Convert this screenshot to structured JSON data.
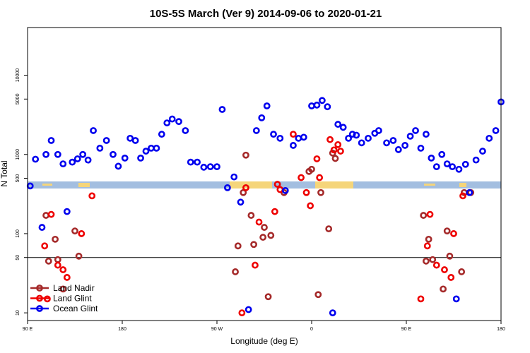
{
  "chart_data": {
    "type": "scatter",
    "title": "10S-5S March (Ver 9)   2014-09-06 to 2020-01-21",
    "xlabel": "Longitude (deg E)",
    "ylabel": "N Total",
    "y_scale": "log",
    "xlim": [
      90,
      450
    ],
    "ylim": [
      8,
      40000
    ],
    "x_ticks": [
      {
        "value": 90,
        "label": "90 E"
      },
      {
        "value": 162,
        "label": "180"
      },
      {
        "value": 234,
        "label": "90 W"
      },
      {
        "value": 306,
        "label": "0"
      },
      {
        "value": 378,
        "label": "90 E"
      },
      {
        "value": 450,
        "label": "180"
      }
    ],
    "y_ticks": [
      {
        "value": 10,
        "label": "10"
      },
      {
        "value": 50,
        "label": "50"
      },
      {
        "value": 100,
        "label": "100"
      },
      {
        "value": 500,
        "label": "500"
      },
      {
        "value": 1000,
        "label": "1000"
      },
      {
        "value": 5000,
        "label": "5000"
      },
      {
        "value": 10000,
        "label": "10000"
      }
    ],
    "reference_line": 50,
    "legend_position": "bottom-left",
    "series": [
      {
        "name": "Land Nadir",
        "color": "#a52a2a",
        "x": [
          104,
          106,
          111,
          113,
          117,
          126,
          129,
          248,
          250,
          254,
          256,
          260,
          262,
          269,
          270,
          273,
          275,
          285,
          304,
          306,
          311,
          313,
          319,
          322,
          324,
          391,
          393,
          395,
          398,
          406,
          409,
          411,
          420,
          422,
          427
        ],
        "y": [
          170,
          45,
          85,
          47,
          20,
          108,
          52,
          33,
          70,
          330,
          980,
          170,
          73,
          90,
          120,
          16,
          95,
          330,
          610,
          650,
          17,
          330,
          115,
          1040,
          890,
          170,
          45,
          85,
          47,
          20,
          108,
          52,
          33,
          330,
          330
        ]
      },
      {
        "name": "Land Glint",
        "color": "#ee0000",
        "x": [
          103,
          105,
          108,
          113,
          117,
          120,
          131,
          139,
          253,
          256,
          263,
          266,
          278,
          280,
          282,
          292,
          298,
          302,
          305,
          310,
          312,
          320,
          323,
          326,
          328,
          389,
          394,
          396,
          401,
          407,
          412,
          414,
          421
        ],
        "y": [
          70,
          15,
          175,
          40,
          35,
          28,
          100,
          300,
          10,
          380,
          40,
          140,
          190,
          420,
          360,
          1800,
          510,
          330,
          225,
          880,
          510,
          1540,
          1140,
          1330,
          1100,
          15,
          70,
          175,
          40,
          35,
          28,
          100,
          300
        ]
      },
      {
        "name": "Ocean Glint",
        "color": "#0000ee",
        "x": [
          92,
          96,
          101,
          104,
          108,
          113,
          117,
          120,
          124,
          128,
          132,
          136,
          140,
          145,
          150,
          155,
          159,
          164,
          168,
          172,
          176,
          180,
          184,
          188,
          192,
          196,
          200,
          205,
          210,
          214,
          219,
          224,
          229,
          234,
          238,
          242,
          247,
          252,
          258,
          264,
          268,
          272,
          277,
          282,
          286,
          292,
          296,
          300,
          306,
          310,
          314,
          318,
          322,
          326,
          330,
          334,
          337,
          340,
          344,
          349,
          354,
          357,
          363,
          368,
          372,
          377,
          381,
          385,
          389,
          393,
          397,
          401,
          405,
          409,
          413,
          418,
          423,
          426,
          431,
          436,
          441,
          446,
          450,
          416
        ],
        "y": [
          400,
          870,
          120,
          1000,
          1500,
          1000,
          760,
          190,
          800,
          880,
          1000,
          850,
          2000,
          1200,
          1500,
          1000,
          710,
          900,
          1600,
          1500,
          900,
          1100,
          1200,
          1200,
          1800,
          2500,
          2800,
          2600,
          2000,
          800,
          800,
          690,
          700,
          700,
          3700,
          380,
          520,
          250,
          11,
          2000,
          2900,
          4100,
          1800,
          1600,
          350,
          1300,
          1600,
          1650,
          4100,
          4200,
          4800,
          4000,
          10,
          2400,
          2200,
          1600,
          1800,
          1750,
          1400,
          1600,
          1850,
          2000,
          1400,
          1500,
          1150,
          1300,
          1700,
          2000,
          1200,
          1800,
          900,
          700,
          1000,
          760,
          700,
          650,
          750,
          330,
          850,
          1100,
          1600,
          2000,
          4600,
          15
        ]
      }
    ]
  }
}
